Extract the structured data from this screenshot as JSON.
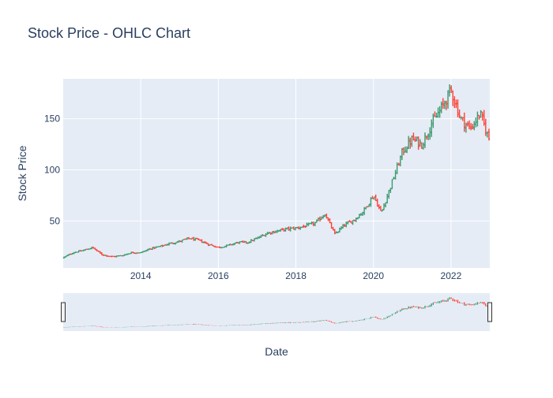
{
  "chart_data": {
    "type": "ohlc",
    "title": "Stock Price - OHLC Chart",
    "xlabel": "Date",
    "ylabel": "Stock Price",
    "x_ticks": [
      "2014",
      "2016",
      "2018",
      "2020",
      "2022"
    ],
    "x_tick_years": [
      2014,
      2016,
      2018,
      2020,
      2022
    ],
    "y_ticks": [
      50,
      100,
      150
    ],
    "xlim": [
      2012.0,
      2023.0
    ],
    "ylim": [
      4,
      189
    ],
    "grid": true,
    "legend": "none",
    "rangeslider": true,
    "colors": {
      "increasing": "#3d9970",
      "decreasing": "#ff4136",
      "plot_bg": "#e5ecf6",
      "grid": "#ffffff",
      "text": "#2a3f5f"
    },
    "series": [
      {
        "x": [
          2012.0,
          2012.25,
          2012.5,
          2012.75,
          2013.0,
          2013.25,
          2013.5,
          2013.75,
          2014.0,
          2014.25,
          2014.5,
          2014.75,
          2015.0,
          2015.25,
          2015.5,
          2015.75,
          2016.0,
          2016.25,
          2016.5,
          2016.75,
          2017.0,
          2017.25,
          2017.5,
          2017.75,
          2018.0,
          2018.25,
          2018.5,
          2018.75,
          2019.0,
          2019.25,
          2019.5,
          2019.75,
          2020.0,
          2020.2,
          2020.5,
          2020.75,
          2021.0,
          2021.25,
          2021.5,
          2021.75,
          2022.0,
          2022.25,
          2022.5,
          2022.75,
          2023.0
        ],
        "close": [
          14,
          19,
          21,
          24,
          17,
          15,
          16,
          19,
          19,
          23,
          25,
          28,
          30,
          33,
          31,
          27,
          24,
          26,
          29,
          29,
          33,
          38,
          40,
          42,
          43,
          45,
          48,
          57,
          37,
          46,
          51,
          60,
          75,
          58,
          90,
          118,
          130,
          125,
          145,
          160,
          178,
          150,
          140,
          155,
          128
        ]
      }
    ]
  }
}
